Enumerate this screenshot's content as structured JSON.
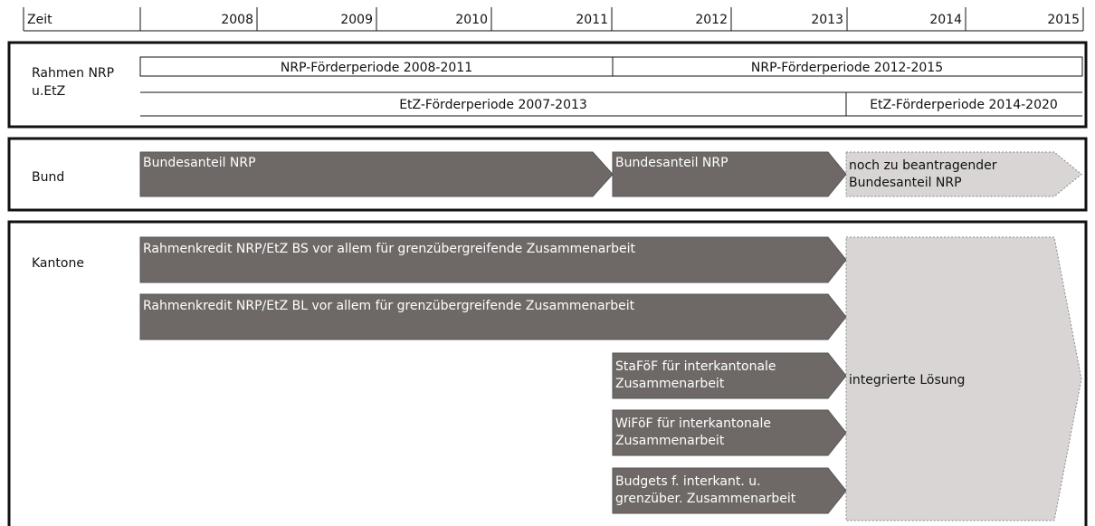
{
  "timeline": {
    "label": "Zeit",
    "years": [
      "2008",
      "2009",
      "2010",
      "2011",
      "2012",
      "2013",
      "2014",
      "2015"
    ]
  },
  "rahmen": {
    "label": [
      "Rahmen NRP",
      "u.EtZ"
    ],
    "nrp": [
      "NRP-Förderperiode 2008-2011",
      "NRP-Förderperiode 2012-2015"
    ],
    "etz": [
      "EtZ-Förderperiode 2007-2013",
      "EtZ-Förderperiode 2014-2020"
    ]
  },
  "bund": {
    "label": "Bund",
    "arrows": [
      {
        "lines": [
          "Bundesanteil NRP"
        ]
      },
      {
        "lines": [
          "Bundesanteil NRP"
        ]
      },
      {
        "lines": [
          "noch zu beantragender",
          "Bundesanteil NRP"
        ]
      }
    ]
  },
  "kantone": {
    "label": "Kantone",
    "arrows": [
      {
        "lines": [
          "Rahmenkredit NRP/EtZ BS vor allem für grenzübergreifende Zusammenarbeit"
        ]
      },
      {
        "lines": [
          "Rahmenkredit NRP/EtZ BL vor allem für grenzübergreifende Zusammenarbeit"
        ]
      },
      {
        "lines": [
          "StaFöF für interkantonale",
          "Zusammenarbeit"
        ]
      },
      {
        "lines": [
          "WiFöF für interkantonale",
          "Zusammenarbeit"
        ]
      },
      {
        "lines": [
          "Budgets f. interkant. u.",
          "grenzüber. Zusammenarbeit"
        ]
      },
      {
        "lines": [
          "integrierte Lösung"
        ]
      }
    ]
  }
}
